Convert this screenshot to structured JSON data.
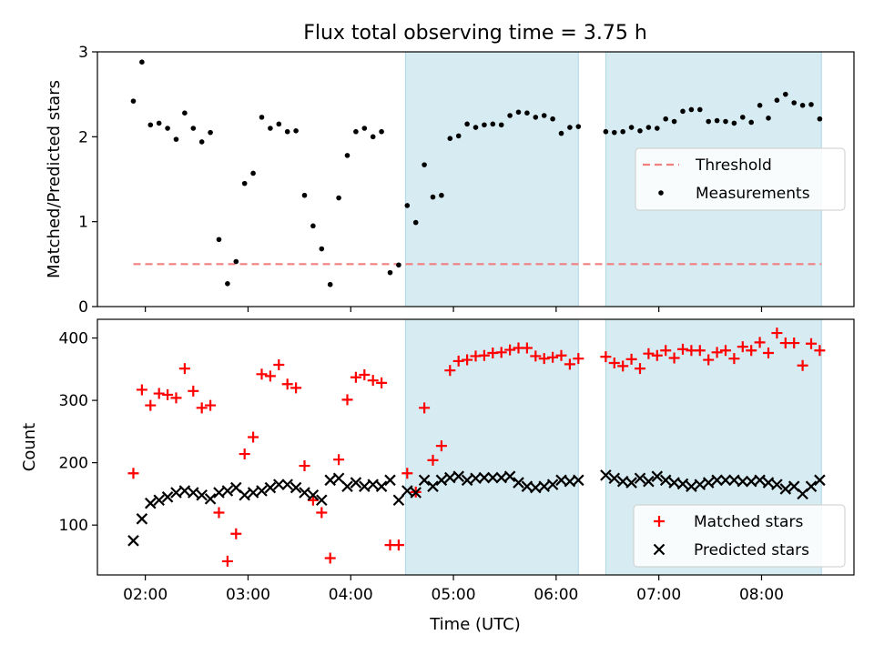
{
  "chart_data": {
    "type": "scatter",
    "title": "Flux total observing time = 3.75 h",
    "xlabel": "Time (UTC)",
    "x_unit": "hours UTC",
    "x_range": [
      "01:32",
      "08:54"
    ],
    "x_ticks": [
      "02:00",
      "03:00",
      "04:00",
      "05:00",
      "06:00",
      "07:00",
      "08:00"
    ],
    "shaded_intervals": [
      [
        "04:32",
        "06:13"
      ],
      [
        "06:29",
        "08:35"
      ]
    ],
    "shade_color": "#add8e6",
    "panels": [
      {
        "ylabel": "Matched/Predicted stars",
        "ylim": [
          0,
          3
        ],
        "y_ticks": [
          "0",
          "1",
          "2",
          "3"
        ],
        "legend_position": "center-right",
        "series": [
          {
            "name": "Threshold",
            "style": "dashed-line",
            "color": "#f08080",
            "x_range": [
              "01:53",
              "08:35"
            ],
            "value": 0.5
          },
          {
            "name": "Measurements",
            "style": "dot",
            "color": "#000000",
            "x": [
              "01:53",
              "01:58",
              "02:03",
              "02:08",
              "02:13",
              "02:18",
              "02:23",
              "02:28",
              "02:33",
              "02:38",
              "02:43",
              "02:48",
              "02:53",
              "02:58",
              "03:03",
              "03:08",
              "03:13",
              "03:18",
              "03:23",
              "03:28",
              "03:33",
              "03:38",
              "03:43",
              "03:48",
              "03:53",
              "03:58",
              "04:03",
              "04:08",
              "04:13",
              "04:18",
              "04:23",
              "04:28",
              "04:33",
              "04:38",
              "04:43",
              "04:48",
              "04:53",
              "04:58",
              "05:03",
              "05:08",
              "05:13",
              "05:18",
              "05:23",
              "05:28",
              "05:33",
              "05:38",
              "05:43",
              "05:48",
              "05:53",
              "05:58",
              "06:03",
              "06:08",
              "06:13",
              "06:29",
              "06:34",
              "06:39",
              "06:44",
              "06:49",
              "06:54",
              "06:59",
              "07:04",
              "07:09",
              "07:14",
              "07:19",
              "07:24",
              "07:29",
              "07:34",
              "07:39",
              "07:44",
              "07:49",
              "07:54",
              "07:59",
              "08:04",
              "08:09",
              "08:14",
              "08:19",
              "08:24",
              "08:29",
              "08:34"
            ],
            "values": [
              2.42,
              2.88,
              2.14,
              2.16,
              2.1,
              1.97,
              2.28,
              2.1,
              1.94,
              2.05,
              0.79,
              0.27,
              0.53,
              1.45,
              1.57,
              2.23,
              2.1,
              2.15,
              2.06,
              2.07,
              1.31,
              0.95,
              0.68,
              0.26,
              1.28,
              1.78,
              2.06,
              2.1,
              2.0,
              2.06,
              0.4,
              0.49,
              1.19,
              0.99,
              1.67,
              1.29,
              1.31,
              1.98,
              2.01,
              2.15,
              2.11,
              2.14,
              2.15,
              2.14,
              2.25,
              2.29,
              2.28,
              2.23,
              2.25,
              2.21,
              2.04,
              2.11,
              2.12,
              2.06,
              2.05,
              2.06,
              2.11,
              2.07,
              2.11,
              2.1,
              2.21,
              2.18,
              2.3,
              2.32,
              2.32,
              2.18,
              2.19,
              2.18,
              2.16,
              2.23,
              2.17,
              2.37,
              2.22,
              2.43,
              2.5,
              2.4,
              2.37,
              2.38,
              2.21
            ]
          }
        ]
      },
      {
        "ylabel": "Count",
        "ylim": [
          20,
          430
        ],
        "y_ticks": [
          "100",
          "200",
          "300",
          "400"
        ],
        "legend_position": "lower-right",
        "series": [
          {
            "name": "Matched stars",
            "style": "plus",
            "color": "#ff0000",
            "x": [
              "01:53",
              "01:58",
              "02:03",
              "02:08",
              "02:13",
              "02:18",
              "02:23",
              "02:28",
              "02:33",
              "02:38",
              "02:43",
              "02:48",
              "02:53",
              "02:58",
              "03:03",
              "03:08",
              "03:13",
              "03:18",
              "03:23",
              "03:28",
              "03:33",
              "03:38",
              "03:43",
              "03:48",
              "03:53",
              "03:58",
              "04:03",
              "04:08",
              "04:13",
              "04:18",
              "04:23",
              "04:28",
              "04:33",
              "04:38",
              "04:43",
              "04:48",
              "04:53",
              "04:58",
              "05:03",
              "05:08",
              "05:13",
              "05:18",
              "05:23",
              "05:28",
              "05:33",
              "05:38",
              "05:43",
              "05:48",
              "05:53",
              "05:58",
              "06:03",
              "06:08",
              "06:13",
              "06:29",
              "06:34",
              "06:39",
              "06:44",
              "06:49",
              "06:54",
              "06:59",
              "07:04",
              "07:09",
              "07:14",
              "07:19",
              "07:24",
              "07:29",
              "07:34",
              "07:39",
              "07:44",
              "07:49",
              "07:54",
              "07:59",
              "08:04",
              "08:09",
              "08:14",
              "08:19",
              "08:24",
              "08:29",
              "08:34"
            ],
            "values": [
              183,
              317,
              292,
              311,
              309,
              304,
              351,
              315,
              288,
              292,
              120,
              42,
              86,
              214,
              241,
              342,
              339,
              357,
              326,
              320,
              195,
              140,
              120,
              47,
              205,
              301,
              337,
              341,
              332,
              328,
              68,
              68,
              183,
              153,
              288,
              204,
              227,
              348,
              363,
              365,
              371,
              372,
              376,
              377,
              381,
              384,
              384,
              371,
              367,
              369,
              372,
              358,
              367,
              370,
              360,
              355,
              366,
              351,
              375,
              372,
              380,
              368,
              382,
              380,
              380,
              365,
              377,
              380,
              367,
              386,
              380,
              393,
              376,
              408,
              392,
              392,
              356,
              391,
              380
            ]
          },
          {
            "name": "Predicted stars",
            "style": "x",
            "color": "#000000",
            "x": [
              "01:53",
              "01:58",
              "02:03",
              "02:08",
              "02:13",
              "02:18",
              "02:23",
              "02:28",
              "02:33",
              "02:38",
              "02:43",
              "02:48",
              "02:53",
              "02:58",
              "03:03",
              "03:08",
              "03:13",
              "03:18",
              "03:23",
              "03:28",
              "03:33",
              "03:38",
              "03:43",
              "03:48",
              "03:53",
              "03:58",
              "04:03",
              "04:08",
              "04:13",
              "04:18",
              "04:23",
              "04:28",
              "04:33",
              "04:38",
              "04:43",
              "04:48",
              "04:53",
              "04:58",
              "05:03",
              "05:08",
              "05:13",
              "05:18",
              "05:23",
              "05:28",
              "05:33",
              "05:38",
              "05:43",
              "05:48",
              "05:53",
              "05:58",
              "06:03",
              "06:08",
              "06:13",
              "06:29",
              "06:34",
              "06:39",
              "06:44",
              "06:49",
              "06:54",
              "06:59",
              "07:04",
              "07:09",
              "07:14",
              "07:19",
              "07:24",
              "07:29",
              "07:34",
              "07:39",
              "07:44",
              "07:49",
              "07:54",
              "07:59",
              "08:04",
              "08:09",
              "08:14",
              "08:19",
              "08:24",
              "08:29",
              "08:34"
            ],
            "values": [
              75,
              110,
              135,
              140,
              145,
              152,
              155,
              152,
              148,
              142,
              152,
              155,
              160,
              148,
              152,
              155,
              160,
              165,
              165,
              160,
              152,
              148,
              140,
              172,
              175,
              162,
              168,
              162,
              165,
              162,
              172,
              140,
              155,
              152,
              172,
              162,
              172,
              176,
              178,
              172,
              175,
              176,
              176,
              176,
              178,
              168,
              162,
              160,
              162,
              165,
              172,
              170,
              172,
              180,
              175,
              170,
              168,
              175,
              170,
              178,
              172,
              168,
              166,
              162,
              165,
              168,
              172,
              172,
              172,
              170,
              170,
              172,
              168,
              165,
              158,
              162,
              150,
              162,
              172
            ]
          }
        ]
      }
    ]
  }
}
